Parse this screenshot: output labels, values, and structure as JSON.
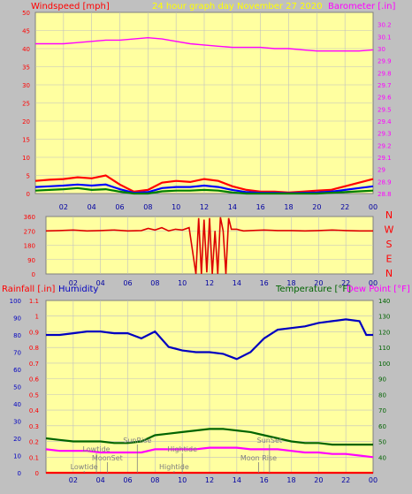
{
  "colors": {
    "background": "#c0c0c0",
    "plot_bg": "#ffffa0",
    "grid": "#c0c0c0",
    "wind_gust": "#ff0000",
    "wind_avg": "#0000ff",
    "wind_min": "#008000",
    "barometer": "#ff00ff",
    "direction": "#dd0000",
    "humidity": "#0000c0",
    "temperature": "#006400",
    "dewpoint": "#ff00ff",
    "x_labels": "#0000a0",
    "left_axis": "#ff0000",
    "right_axis": "#ff00ff",
    "tide_text": "#808080"
  },
  "chart_data": [
    {
      "type": "line",
      "title": "24 hour graph day   November 27 2020",
      "left_label": "Windspeed [mph]",
      "right_label": "Barometer [.in]",
      "x_ticks": [
        "02",
        "04",
        "06",
        "08",
        "10",
        "12",
        "14",
        "16",
        "18",
        "20",
        "22",
        "00"
      ],
      "xlim": [
        0,
        24
      ],
      "ylim_left": [
        0,
        50
      ],
      "ylim_right": [
        28.8,
        30.3
      ],
      "left_ticks": [
        "0",
        "5",
        "10",
        "15",
        "20",
        "25",
        "30",
        "35",
        "40",
        "45",
        "50"
      ],
      "right_ticks": [
        "28.8",
        "28.9",
        "29",
        "29.1",
        "29.2",
        "29.3",
        "29.4",
        "29.5",
        "29.6",
        "29.7",
        "29.8",
        "29.9",
        "30",
        "30.1",
        "30.2"
      ],
      "series": [
        {
          "name": "Windspeed gust",
          "axis": "left",
          "color": "wind_gust",
          "x": [
            0,
            1,
            2,
            3,
            4,
            5,
            6,
            7,
            8,
            9,
            10,
            11,
            12,
            13,
            14,
            15,
            16,
            17,
            18,
            19,
            20,
            21,
            22,
            23,
            24
          ],
          "values": [
            3.5,
            3.8,
            4,
            4.5,
            4.2,
            5,
            2.5,
            0.5,
            1,
            3,
            3.5,
            3.2,
            4,
            3.5,
            2,
            1,
            0.5,
            0.5,
            0.3,
            0.5,
            0.8,
            1,
            2,
            3,
            4
          ]
        },
        {
          "name": "Windspeed avg",
          "axis": "left",
          "color": "wind_avg",
          "x": [
            0,
            1,
            2,
            3,
            4,
            5,
            6,
            7,
            8,
            9,
            10,
            11,
            12,
            13,
            14,
            15,
            16,
            17,
            18,
            19,
            20,
            21,
            22,
            23,
            24
          ],
          "values": [
            1.8,
            2,
            2.2,
            2.5,
            2.2,
            2.5,
            1.2,
            0.2,
            0.4,
            1.5,
            1.8,
            1.8,
            2.2,
            1.8,
            1,
            0.4,
            0.2,
            0.2,
            0.1,
            0.2,
            0.3,
            0.5,
            1,
            1.5,
            2
          ]
        },
        {
          "name": "Windspeed min",
          "axis": "left",
          "color": "wind_min",
          "x": [
            0,
            1,
            2,
            3,
            4,
            5,
            6,
            7,
            8,
            9,
            10,
            11,
            12,
            13,
            14,
            15,
            16,
            17,
            18,
            19,
            20,
            21,
            22,
            23,
            24
          ],
          "values": [
            0.8,
            1,
            1.2,
            1.5,
            1,
            1.2,
            0.5,
            0,
            0,
            0.6,
            0.8,
            0.8,
            1,
            0.8,
            0.3,
            0,
            0,
            0,
            0,
            0,
            0,
            0.2,
            0.4,
            0.6,
            0.8
          ]
        },
        {
          "name": "Barometer",
          "axis": "right",
          "color": "barometer",
          "x": [
            0,
            1,
            2,
            3,
            4,
            5,
            6,
            7,
            8,
            9,
            10,
            11,
            12,
            13,
            14,
            15,
            16,
            17,
            18,
            19,
            20,
            21,
            22,
            23,
            24
          ],
          "values": [
            30.04,
            30.04,
            30.04,
            30.05,
            30.06,
            30.07,
            30.07,
            30.08,
            30.09,
            30.08,
            30.06,
            30.04,
            30.03,
            30.02,
            30.01,
            30.01,
            30.01,
            30.0,
            30.0,
            29.99,
            29.98,
            29.98,
            29.98,
            29.98,
            29.99
          ]
        }
      ]
    },
    {
      "type": "line",
      "right_label": "N W S E N",
      "compass": [
        "N",
        "W",
        "S",
        "E",
        "N"
      ],
      "x_ticks": [
        "02",
        "04",
        "06",
        "08",
        "10",
        "12",
        "14",
        "16",
        "18",
        "20",
        "22",
        "00"
      ],
      "xlim": [
        0,
        24
      ],
      "ylim": [
        0,
        360
      ],
      "left_ticks": [
        "0",
        "90",
        "180",
        "270",
        "360"
      ],
      "series": [
        {
          "name": "Wind direction",
          "color": "direction",
          "x": [
            0,
            1,
            2,
            3,
            4,
            5,
            6,
            7,
            7.5,
            8,
            8.5,
            9,
            9.5,
            10,
            10.5,
            11,
            11.2,
            11.4,
            11.6,
            11.8,
            12,
            12.2,
            12.4,
            12.6,
            12.8,
            13,
            13.2,
            13.4,
            13.6,
            13.8,
            14,
            14.2,
            14.5,
            15,
            16,
            17,
            18,
            19,
            20,
            21,
            22,
            23,
            23.5,
            24
          ],
          "values": [
            270,
            272,
            275,
            270,
            272,
            275,
            270,
            272,
            285,
            275,
            290,
            270,
            280,
            275,
            290,
            0,
            350,
            0,
            340,
            10,
            350,
            0,
            270,
            0,
            355,
            270,
            0,
            350,
            280,
            280,
            280,
            275,
            270,
            272,
            275,
            272,
            272,
            270,
            272,
            275,
            272,
            270,
            270,
            270
          ]
        }
      ]
    },
    {
      "type": "line",
      "left_label": "Rainfall [.in]",
      "humidity_label": "Humidity",
      "temperature_label": "Temperature [°F]",
      "dewpoint_label": "Dew Point [°F]",
      "x_ticks": [
        "02",
        "04",
        "06",
        "08",
        "10",
        "12",
        "14",
        "16",
        "18",
        "20",
        "22",
        "00"
      ],
      "xlim": [
        0,
        24
      ],
      "ylim_rain": [
        0,
        1.1
      ],
      "ylim_humidity": [
        0,
        100
      ],
      "ylim_temp": [
        30,
        140
      ],
      "rain_ticks": [
        "0",
        "0.1",
        "0.2",
        "0.3",
        "0.4",
        "0.5",
        "0.6",
        "0.7",
        "0.8",
        "0.9",
        "1",
        "1.1"
      ],
      "humidity_ticks": [
        "0",
        "10",
        "20",
        "30",
        "40",
        "50",
        "60",
        "70",
        "80",
        "90",
        "100"
      ],
      "temp_ticks": [
        "40",
        "50",
        "60",
        "70",
        "80",
        "90",
        "100",
        "110",
        "120",
        "130",
        "140"
      ],
      "series": [
        {
          "name": "Humidity",
          "axis": "humidity",
          "color": "humidity",
          "x": [
            0,
            1,
            2,
            3,
            4,
            5,
            6,
            7,
            8,
            9,
            10,
            11,
            12,
            13,
            14,
            15,
            16,
            17,
            18,
            19,
            20,
            21,
            22,
            23,
            23.5,
            24
          ],
          "values": [
            80,
            80,
            81,
            82,
            82,
            81,
            81,
            78,
            82,
            73,
            71,
            70,
            70,
            69,
            66,
            70,
            78,
            83,
            84,
            85,
            87,
            88,
            89,
            88,
            80,
            80
          ]
        },
        {
          "name": "Temperature",
          "axis": "temp",
          "color": "temperature",
          "x": [
            0,
            1,
            2,
            3,
            4,
            5,
            6,
            7,
            8,
            9,
            10,
            11,
            12,
            13,
            14,
            15,
            16,
            17,
            18,
            19,
            20,
            21,
            22,
            23,
            24
          ],
          "values": [
            52,
            51,
            50,
            50,
            50,
            49,
            49,
            50,
            54,
            55,
            56,
            57,
            58,
            58,
            57,
            56,
            54,
            52,
            50,
            49,
            49,
            48,
            48,
            48,
            48
          ]
        },
        {
          "name": "Dew Point",
          "axis": "temp",
          "color": "dewpoint",
          "x": [
            0,
            1,
            2,
            3,
            4,
            5,
            6,
            7,
            8,
            9,
            10,
            11,
            12,
            13,
            14,
            15,
            16,
            17,
            18,
            19,
            20,
            21,
            22,
            23,
            24
          ],
          "values": [
            45,
            44,
            44,
            44,
            43,
            43,
            43,
            43,
            45,
            45,
            45,
            45,
            46,
            46,
            46,
            45,
            45,
            45,
            44,
            43,
            43,
            42,
            42,
            41,
            40
          ]
        },
        {
          "name": "Rainfall",
          "axis": "rain",
          "color": "left_axis",
          "x": [
            0,
            24
          ],
          "values": [
            0,
            0
          ]
        }
      ],
      "annotations": [
        {
          "label": "Lowtide",
          "hour": 3.7,
          "row": 2
        },
        {
          "label": "MoonSet",
          "hour": 4.5,
          "row": 1
        },
        {
          "label": "SunRise",
          "hour": 6.7,
          "row": 3
        },
        {
          "label": "Hightide",
          "hour": 10,
          "row": 2
        },
        {
          "label": "SunSet",
          "hour": 16.4,
          "row": 3
        },
        {
          "label": "Moon Rise",
          "hour": 15.6,
          "row": 1
        },
        {
          "label": "Lowtide",
          "hour": 2.8,
          "row": 0
        },
        {
          "label": "Hightide",
          "hour": 9.4,
          "row": 0
        }
      ]
    }
  ]
}
